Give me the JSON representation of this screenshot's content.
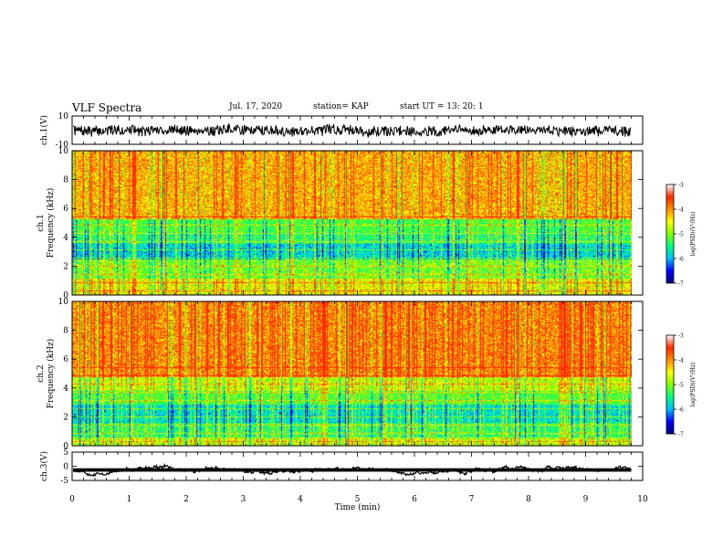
{
  "header": {
    "title": "VLF Spectra",
    "date": "Jul. 17, 2020",
    "station": "station= KAP",
    "start": "start UT =  13: 20: 1"
  },
  "colors": {
    "colormap": [
      "#000080",
      "#0000ff",
      "#00bfff",
      "#00ff7f",
      "#7fff00",
      "#ffff00",
      "#ff8c00",
      "#ff2a00",
      "#ffffff"
    ]
  },
  "chart_data": [
    {
      "type": "line",
      "panel": "ch1-waveform",
      "ylabel": "ch.1(V)",
      "ylim": [
        -10,
        10
      ],
      "yticks": [
        "10",
        "-10"
      ],
      "xlim": [
        0,
        10
      ],
      "series": [
        {
          "values_note": "noisy broadband signal",
          "mean": 0,
          "amplitude": 6
        }
      ]
    },
    {
      "type": "heatmap",
      "panel": "ch1-spectrogram",
      "ylabel": "ch.1 Frequency (kHz)",
      "ylim": [
        0,
        10
      ],
      "yticks": [
        "0",
        "2",
        "4",
        "6",
        "8",
        "10"
      ],
      "xlim": [
        0,
        9.8
      ],
      "colorbar": {
        "label": "log(PSD)(V²/Hz)",
        "range": [
          -7,
          -3
        ],
        "ticks": [
          "-3",
          "-4",
          "-5",
          "-6",
          "-7"
        ]
      }
    },
    {
      "type": "heatmap",
      "panel": "ch2-spectrogram",
      "ylabel": "ch.2 Frequency (kHz)",
      "ylim": [
        0,
        10
      ],
      "yticks": [
        "0",
        "2",
        "4",
        "6",
        "8",
        "10"
      ],
      "xlim": [
        0,
        9.8
      ],
      "colorbar": {
        "label": "log(PSD)(V²/Hz)",
        "range": [
          -7,
          -3
        ],
        "ticks": [
          "-3",
          "-4",
          "-5",
          "-6",
          "-7"
        ]
      }
    },
    {
      "type": "line",
      "panel": "ch3-waveform",
      "ylabel": "ch.3(V)",
      "ylim": [
        -5,
        5
      ],
      "yticks": [
        "5",
        "0",
        "-5"
      ],
      "xlim": [
        0,
        10
      ],
      "series": [
        {
          "values_note": "thick flat band",
          "mean": -1.3,
          "amplitude": 0.6
        }
      ]
    }
  ],
  "xaxis": {
    "label": "Time (min)",
    "ticks": [
      "0",
      "1",
      "2",
      "3",
      "4",
      "5",
      "6",
      "7",
      "8",
      "9",
      "10"
    ]
  }
}
